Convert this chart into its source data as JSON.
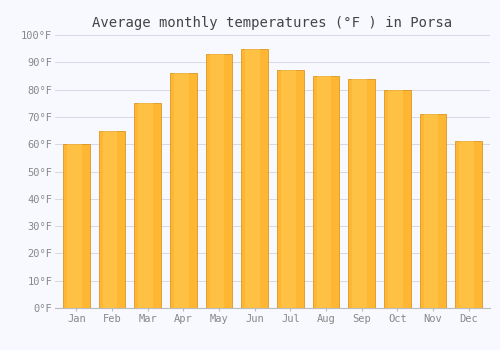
{
  "title": "Average monthly temperatures (°F ) in Porsa",
  "months": [
    "Jan",
    "Feb",
    "Mar",
    "Apr",
    "May",
    "Jun",
    "Jul",
    "Aug",
    "Sep",
    "Oct",
    "Nov",
    "Dec"
  ],
  "values": [
    60,
    65,
    75,
    86,
    93,
    95,
    87,
    85,
    84,
    80,
    71,
    61
  ],
  "bar_color": "#FFA500",
  "bar_edge_color": "#CC8800",
  "ylim": [
    0,
    100
  ],
  "yticks": [
    0,
    10,
    20,
    30,
    40,
    50,
    60,
    70,
    80,
    90,
    100
  ],
  "ytick_labels": [
    "0°F",
    "10°F",
    "20°F",
    "30°F",
    "40°F",
    "50°F",
    "60°F",
    "70°F",
    "80°F",
    "90°F",
    "100°F"
  ],
  "background_color": "#f8f8ff",
  "plot_bg_color": "#f8f8ff",
  "grid_color": "#d8d8e8",
  "title_fontsize": 10,
  "tick_fontsize": 7.5,
  "bar_width": 0.75
}
